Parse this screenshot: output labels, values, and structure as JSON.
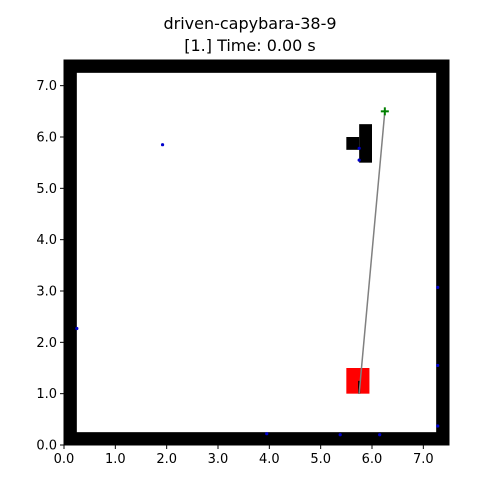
{
  "title_line_1": "driven-capybara-38-9",
  "title_line_2": "[1.] Time: 0.00 s",
  "chart_data": {
    "type": "scatter",
    "xlim": [
      0,
      7.5
    ],
    "ylim": [
      0,
      7.5
    ],
    "xticks": [
      "0.0",
      "1.0",
      "2.0",
      "3.0",
      "4.0",
      "5.0",
      "6.0",
      "7.0"
    ],
    "yticks": [
      "0.0",
      "1.0",
      "2.0",
      "3.0",
      "4.0",
      "5.0",
      "6.0",
      "7.0"
    ],
    "xtick_values": [
      0,
      1,
      2,
      3,
      4,
      5,
      6,
      7
    ],
    "ytick_values": [
      0,
      1,
      2,
      3,
      4,
      5,
      6,
      7
    ],
    "walls": [
      {
        "x0": 0.0,
        "y0": 0.0,
        "x1": 7.5,
        "y1": 0.25
      },
      {
        "x0": 0.0,
        "y0": 7.25,
        "x1": 7.5,
        "y1": 7.5
      },
      {
        "x0": 0.0,
        "y0": 0.0,
        "x1": 0.25,
        "y1": 7.5
      },
      {
        "x0": 7.25,
        "y0": 0.0,
        "x1": 7.5,
        "y1": 7.5
      }
    ],
    "obstacles": [
      {
        "x0": 5.75,
        "y0": 5.5,
        "x1": 6.0,
        "y1": 6.25
      },
      {
        "x0": 5.5,
        "y0": 5.75,
        "x1": 5.75,
        "y1": 6.0
      }
    ],
    "robot": {
      "x0": 5.5,
      "y0": 1.0,
      "x1": 5.95,
      "y1": 1.5,
      "color": "#ff0000"
    },
    "path": {
      "x0": 5.75,
      "y0": 1.0,
      "x1": 6.25,
      "y1": 6.5,
      "color": "#808080"
    },
    "heading": {
      "x0": 5.75,
      "y0": 1.0,
      "x1": 5.75,
      "y1": 1.25
    },
    "goal": {
      "x": 6.25,
      "y": 6.5,
      "color": "#008000"
    },
    "points_color": "#0000cc",
    "points": [
      {
        "x": 1.92,
        "y": 5.85
      },
      {
        "x": 5.75,
        "y": 5.78
      },
      {
        "x": 5.75,
        "y": 5.55
      },
      {
        "x": 0.25,
        "y": 2.27
      },
      {
        "x": 7.28,
        "y": 3.07
      },
      {
        "x": 7.28,
        "y": 1.55
      },
      {
        "x": 7.28,
        "y": 0.37
      },
      {
        "x": 3.95,
        "y": 0.22
      },
      {
        "x": 5.38,
        "y": 0.2
      },
      {
        "x": 6.15,
        "y": 0.2
      }
    ]
  }
}
